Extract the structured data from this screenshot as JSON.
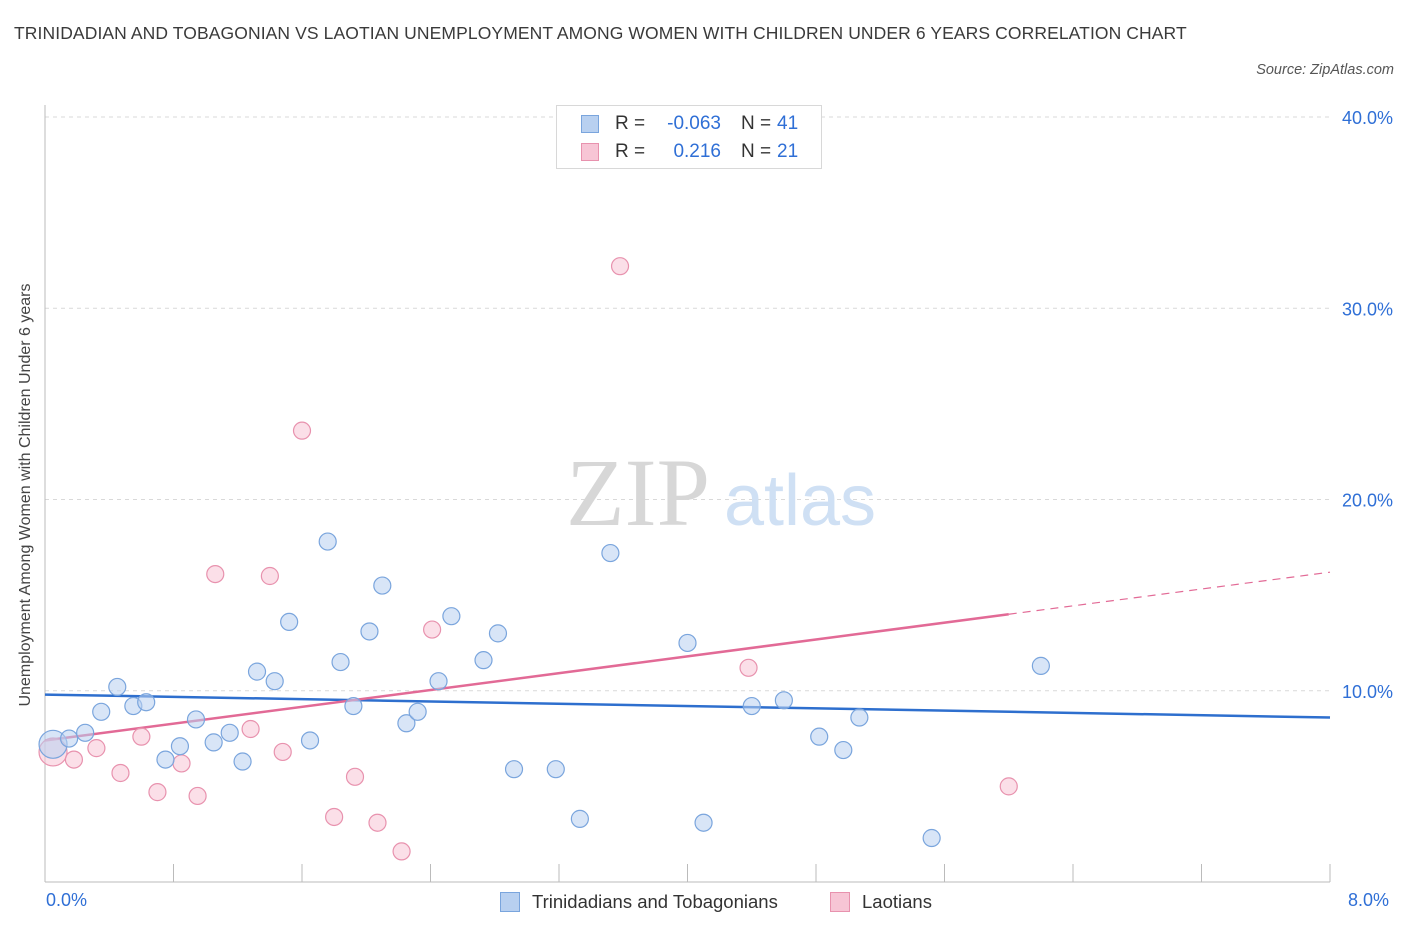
{
  "title": "TRINIDADIAN AND TOBAGONIAN VS LAOTIAN UNEMPLOYMENT AMONG WOMEN WITH CHILDREN UNDER 6 YEARS CORRELATION CHART",
  "source": "Source: ZipAtlas.com",
  "watermark": {
    "zip": "ZIP",
    "atlas": "atlas"
  },
  "legend": {
    "rows": [
      {
        "r_label": "R =",
        "r_value": "-0.063",
        "n_label": "N =",
        "n_value": "41"
      },
      {
        "r_label": "R =",
        "r_value": "0.216",
        "n_label": "N =",
        "n_value": "21"
      }
    ]
  },
  "bottom_legend": [
    "Trinidadians and Tobagonians",
    "Laotians"
  ],
  "colors": {
    "blue_fill": "#b8d0f0",
    "blue_stroke": "#7aa5dd",
    "blue_line": "#2e6fce",
    "pink_fill": "#f7c5d5",
    "pink_stroke": "#e892ae",
    "pink_line": "#e26a96",
    "tick_text": "#2f6fd6",
    "grid": "#d9d9d9"
  },
  "chart_data": {
    "type": "scatter",
    "title": "TRINIDADIAN AND TOBAGONIAN VS LAOTIAN UNEMPLOYMENT AMONG WOMEN WITH CHILDREN UNDER 6 YEARS CORRELATION CHART",
    "xlabel": "",
    "ylabel": "Unemployment Among Women with Children Under 6 years",
    "xlim": [
      0,
      8
    ],
    "ylim": [
      0,
      40
    ],
    "x_ticks": [
      "0.0%",
      "8.0%"
    ],
    "y_ticks": [
      {
        "value": 10,
        "label": "10.0%"
      },
      {
        "value": 20,
        "label": "20.0%"
      },
      {
        "value": 30,
        "label": "30.0%"
      },
      {
        "value": 40,
        "label": "40.0%"
      }
    ],
    "grid": true,
    "legend_placement": "top-center",
    "series": [
      {
        "name": "Trinidadians and Tobagonians",
        "color": "blue",
        "r": -0.063,
        "n": 41,
        "trend": {
          "x": [
            0,
            8
          ],
          "y": [
            9.8,
            8.6
          ]
        },
        "points": [
          [
            0.05,
            7.2
          ],
          [
            0.15,
            7.5
          ],
          [
            0.25,
            7.8
          ],
          [
            0.35,
            8.9
          ],
          [
            0.45,
            10.2
          ],
          [
            0.55,
            9.2
          ],
          [
            0.63,
            9.4
          ],
          [
            0.75,
            6.4
          ],
          [
            0.84,
            7.1
          ],
          [
            0.94,
            8.5
          ],
          [
            1.05,
            7.3
          ],
          [
            1.15,
            7.8
          ],
          [
            1.23,
            6.3
          ],
          [
            1.32,
            11.0
          ],
          [
            1.43,
            10.5
          ],
          [
            1.52,
            13.6
          ],
          [
            1.65,
            7.4
          ],
          [
            1.76,
            17.8
          ],
          [
            1.84,
            11.5
          ],
          [
            1.92,
            9.2
          ],
          [
            2.02,
            13.1
          ],
          [
            2.1,
            15.5
          ],
          [
            2.25,
            8.3
          ],
          [
            2.32,
            8.9
          ],
          [
            2.45,
            10.5
          ],
          [
            2.53,
            13.9
          ],
          [
            2.73,
            11.6
          ],
          [
            2.82,
            13.0
          ],
          [
            2.92,
            5.9
          ],
          [
            3.18,
            5.9
          ],
          [
            3.33,
            3.3
          ],
          [
            3.52,
            17.2
          ],
          [
            4.0,
            12.5
          ],
          [
            4.1,
            3.1
          ],
          [
            4.4,
            9.2
          ],
          [
            4.6,
            9.5
          ],
          [
            4.82,
            7.6
          ],
          [
            4.97,
            6.9
          ],
          [
            5.07,
            8.6
          ],
          [
            5.52,
            2.3
          ],
          [
            6.2,
            11.3
          ]
        ]
      },
      {
        "name": "Laotians",
        "color": "pink",
        "r": 0.216,
        "n": 21,
        "trend": {
          "x": [
            0,
            6
          ],
          "y": [
            7.4,
            14.0
          ]
        },
        "trend_dashed": {
          "x": [
            6,
            8
          ],
          "y": [
            14.0,
            16.2
          ]
        },
        "points": [
          [
            0.05,
            6.8
          ],
          [
            0.18,
            6.4
          ],
          [
            0.32,
            7.0
          ],
          [
            0.47,
            5.7
          ],
          [
            0.6,
            7.6
          ],
          [
            0.7,
            4.7
          ],
          [
            0.85,
            6.2
          ],
          [
            0.95,
            4.5
          ],
          [
            1.06,
            16.1
          ],
          [
            1.28,
            8.0
          ],
          [
            1.4,
            16.0
          ],
          [
            1.48,
            6.8
          ],
          [
            1.6,
            23.6
          ],
          [
            1.8,
            3.4
          ],
          [
            1.93,
            5.5
          ],
          [
            2.07,
            3.1
          ],
          [
            2.22,
            1.6
          ],
          [
            2.41,
            13.2
          ],
          [
            3.58,
            32.2
          ],
          [
            4.38,
            11.2
          ],
          [
            6.0,
            5.0
          ]
        ]
      }
    ]
  }
}
